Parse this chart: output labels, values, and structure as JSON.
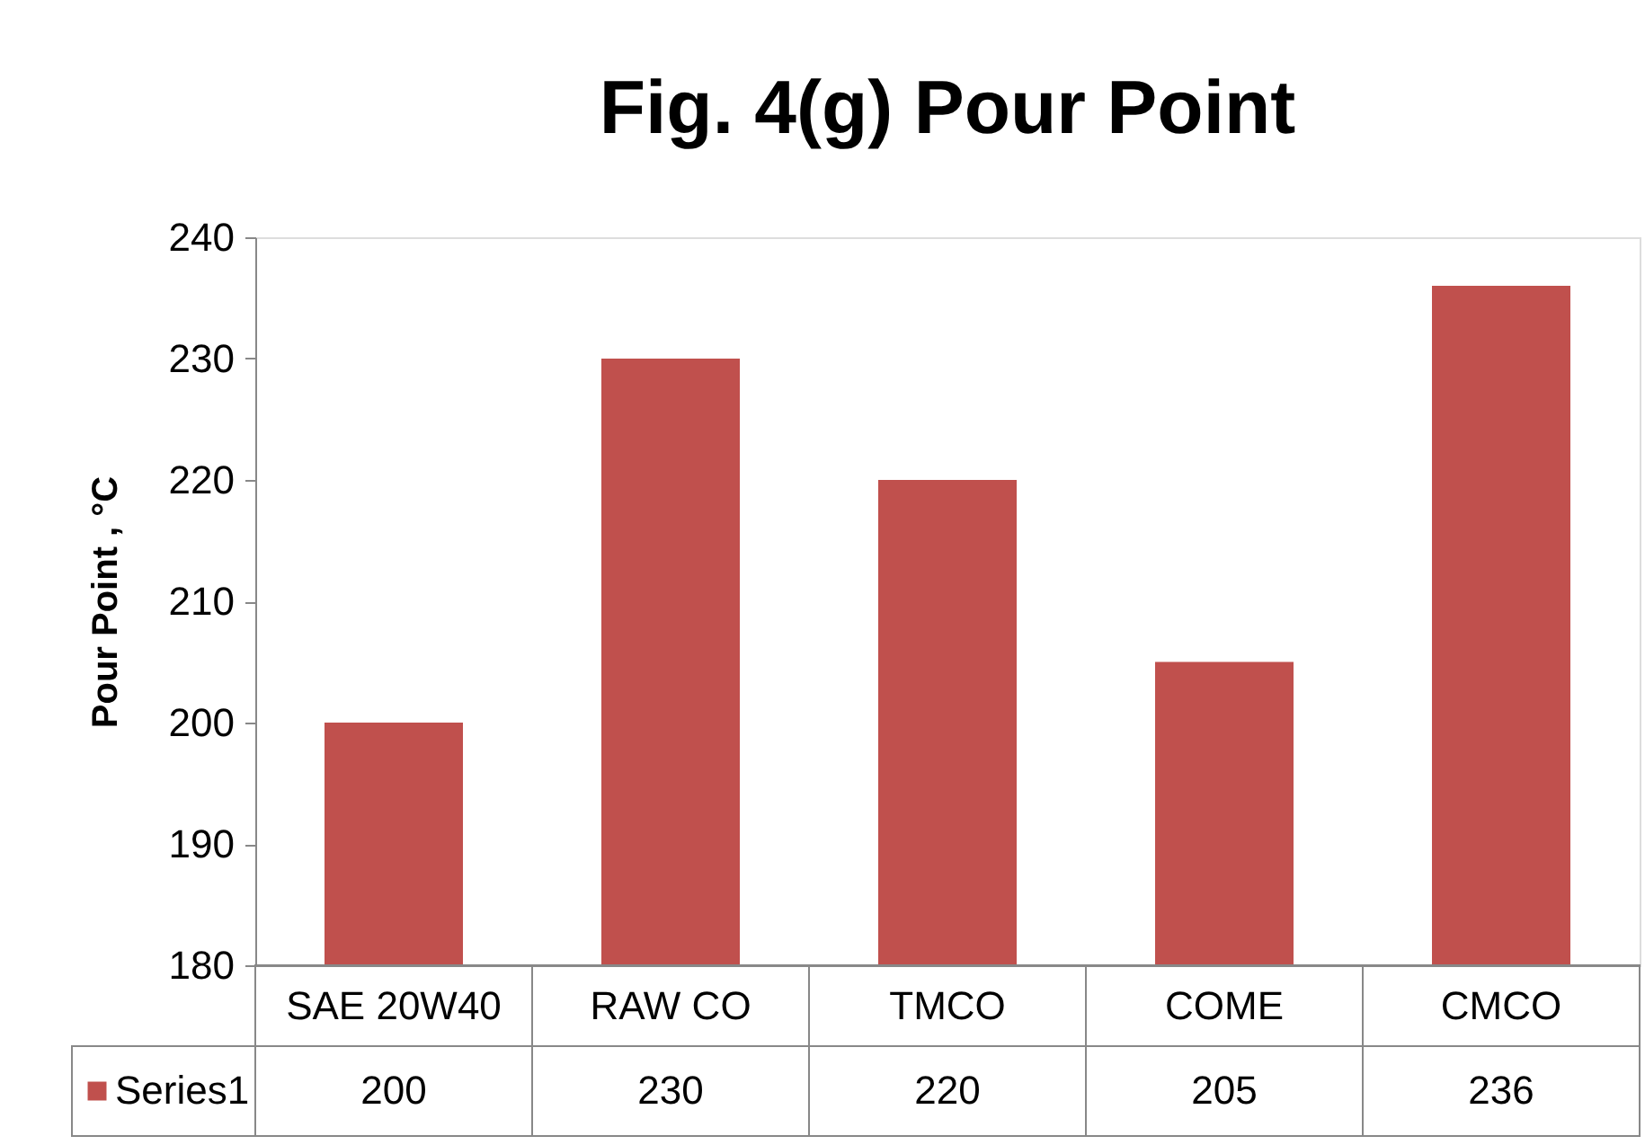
{
  "chart_data": {
    "type": "bar",
    "title": "Fig. 4(g) Pour Point",
    "ylabel": "Pour Point , °C",
    "categories": [
      "SAE 20W40",
      "RAW CO",
      "TMCO",
      "COME",
      "CMCO"
    ],
    "series": [
      {
        "name": "Series1",
        "color": "#c0504d",
        "values": [
          200,
          230,
          220,
          205,
          236
        ]
      }
    ],
    "ylim": [
      180,
      240
    ],
    "yticks": [
      180,
      190,
      200,
      210,
      220,
      230,
      240
    ],
    "grid": false,
    "legend": "bottom",
    "data_labels": true
  }
}
